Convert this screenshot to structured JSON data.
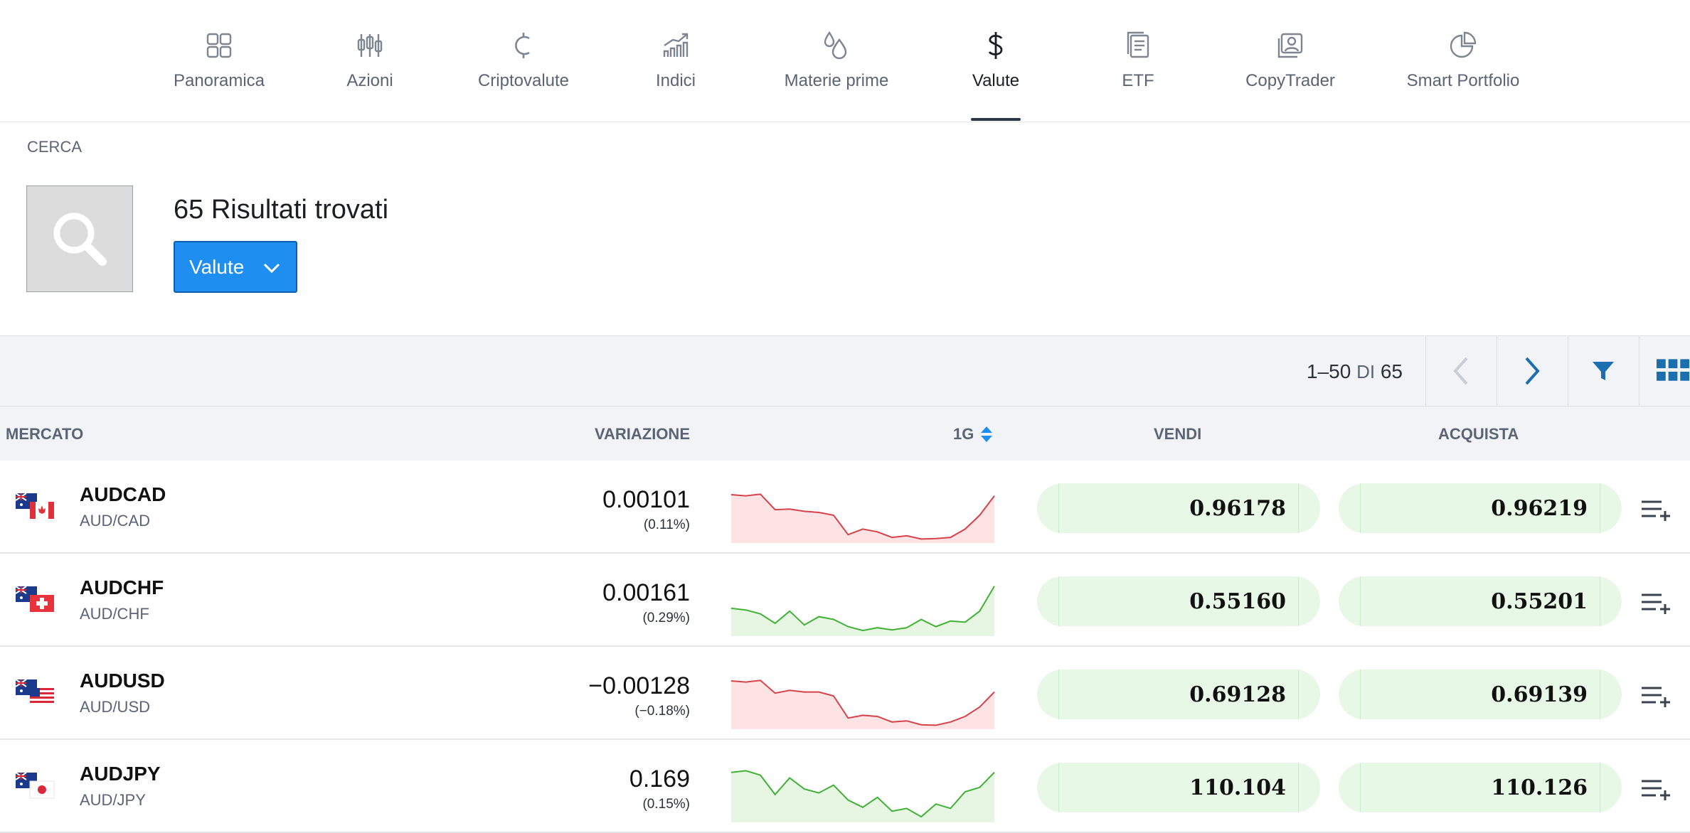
{
  "nav": {
    "items": [
      {
        "label": "Panoramica",
        "icon": "grid-icon"
      },
      {
        "label": "Azioni",
        "icon": "candlestick-icon"
      },
      {
        "label": "Criptovalute",
        "icon": "crypto-coin-icon"
      },
      {
        "label": "Indici",
        "icon": "bar-trend-icon"
      },
      {
        "label": "Materie prime",
        "icon": "drops-icon"
      },
      {
        "label": "Valute",
        "icon": "dollar-icon"
      },
      {
        "label": "ETF",
        "icon": "document-stack-icon"
      },
      {
        "label": "CopyTrader",
        "icon": "copytrader-icon"
      },
      {
        "label": "Smart Portfolio",
        "icon": "pie-chart-icon"
      }
    ],
    "active": "Valute"
  },
  "search": {
    "section_label": "CERCA",
    "results_count": "65",
    "results_text": "Risultati trovati",
    "type_filter": "Valute"
  },
  "toolbar": {
    "range": "1–50",
    "of": "DI",
    "total": "65"
  },
  "table": {
    "headers": {
      "market": "MERCATO",
      "change": "VARIAZIONE",
      "period": "1G",
      "sell": "VENDI",
      "buy": "ACQUISTA"
    },
    "rows": [
      {
        "symbol": "AUDCAD",
        "pair": "AUD/CAD",
        "change": "0.00101",
        "pct": "(0.11%)",
        "sell": "0.96178",
        "buy": "0.96219",
        "trend": "down",
        "flag2": "canada",
        "spark": [
          0.82,
          0.8,
          0.83,
          0.55,
          0.56,
          0.52,
          0.5,
          0.45,
          0.1,
          0.2,
          0.15,
          0.05,
          0.08,
          0.02,
          0.03,
          0.05,
          0.2,
          0.45,
          0.8
        ]
      },
      {
        "symbol": "AUDCHF",
        "pair": "AUD/CHF",
        "change": "0.00161",
        "pct": "(0.29%)",
        "sell": "0.55160",
        "buy": "0.55201",
        "trend": "up",
        "flag2": "switzerland",
        "spark": [
          0.45,
          0.42,
          0.35,
          0.18,
          0.4,
          0.15,
          0.3,
          0.25,
          0.12,
          0.05,
          0.1,
          0.06,
          0.1,
          0.25,
          0.12,
          0.22,
          0.2,
          0.4,
          0.85
        ]
      },
      {
        "symbol": "AUDUSD",
        "pair": "AUD/USD",
        "change": "−0.00128",
        "pct": "(−0.18%)",
        "sell": "0.69128",
        "buy": "0.69139",
        "trend": "down",
        "flag2": "usa",
        "spark": [
          0.82,
          0.8,
          0.83,
          0.6,
          0.65,
          0.62,
          0.62,
          0.55,
          0.15,
          0.2,
          0.18,
          0.08,
          0.1,
          0.03,
          0.02,
          0.08,
          0.18,
          0.35,
          0.62
        ]
      },
      {
        "symbol": "AUDJPY",
        "pair": "AUD/JPY",
        "change": "0.169",
        "pct": "(0.15%)",
        "sell": "110.104",
        "buy": "110.126",
        "trend": "up",
        "flag2": "japan",
        "spark": [
          0.85,
          0.88,
          0.8,
          0.45,
          0.75,
          0.55,
          0.48,
          0.62,
          0.35,
          0.22,
          0.4,
          0.15,
          0.2,
          0.05,
          0.28,
          0.2,
          0.5,
          0.58,
          0.85
        ]
      }
    ]
  },
  "colors": {
    "accent_blue": "#1e8ff0",
    "down_red": "#d6424a",
    "up_green": "#41b136",
    "price_bg": "#e8f8e6"
  }
}
